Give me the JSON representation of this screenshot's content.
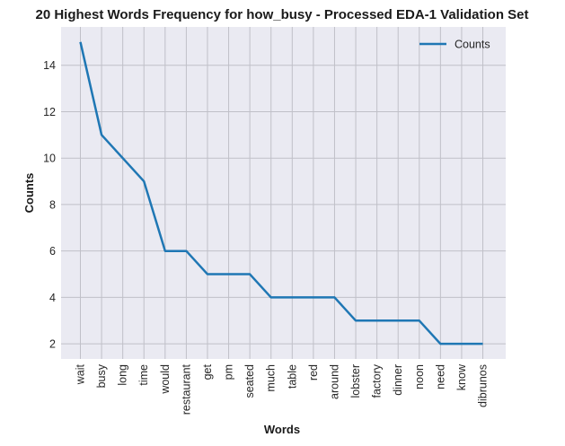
{
  "chart_data": {
    "type": "line",
    "title": "20 Highest Words Frequency for how_busy - Processed EDA-1 Validation Set",
    "xlabel": "Words",
    "ylabel": "Counts",
    "categories": [
      "wait",
      "busy",
      "long",
      "time",
      "would",
      "restaurant",
      "get",
      "pm",
      "seated",
      "much",
      "table",
      "red",
      "around",
      "lobster",
      "factory",
      "dinner",
      "noon",
      "need",
      "know",
      "dibrunos"
    ],
    "series": [
      {
        "name": "Counts",
        "values": [
          15,
          11,
          10,
          9,
          6,
          6,
          5,
          5,
          5,
          4,
          4,
          4,
          4,
          3,
          3,
          3,
          3,
          2,
          2,
          2
        ]
      }
    ],
    "ylim": [
      1.35,
      15.65
    ],
    "yticks": [
      2,
      4,
      6,
      8,
      10,
      12,
      14
    ],
    "grid": true,
    "legend_position": "top-right",
    "colors": {
      "line": "#1f77b4",
      "plot_background": "#eaeaf2",
      "grid": "#c0c0c8"
    }
  }
}
